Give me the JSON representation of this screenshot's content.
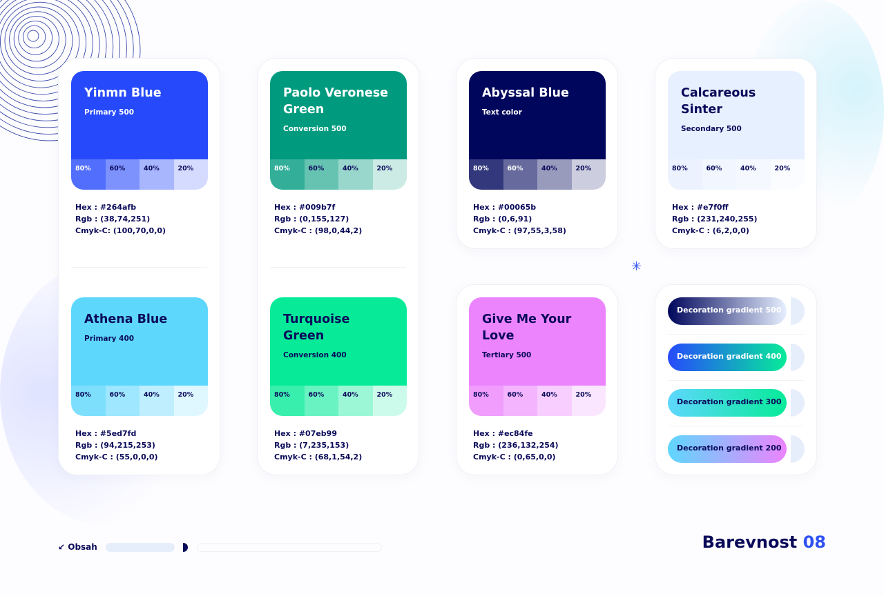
{
  "colors": {
    "navy": "#0a0a5a",
    "accent": "#2f52f0"
  },
  "swatches": [
    {
      "name": "Yinmn Blue",
      "role": "Primary 500",
      "hex": "#264afb",
      "hex_label": "Hex : #264afb",
      "rgb_label": "Rgb : (38,74,251)",
      "cmyk_label": "Cmyk-C: (100,70,0,0)"
    },
    {
      "name": "Paolo Veronese Green",
      "role": "Conversion 500",
      "hex": "#009b7f",
      "hex_label": "Hex : #009b7f",
      "rgb_label": "Rgb : (0,155,127)",
      "cmyk_label": "Cmyk-C : (98,0,44,2)"
    },
    {
      "name": "Abyssal Blue",
      "role": "Text color",
      "hex": "#00065b",
      "hex_label": "Hex : #00065b",
      "rgb_label": "Rgb : (0,6,91)",
      "cmyk_label": "Cmyk-C : (97,55,3,58)"
    },
    {
      "name": "Calcareous Sinter",
      "role": "Secondary 500",
      "hex": "#e7f0ff",
      "hex_label": "Hex : #e7f0ff",
      "rgb_label": "Rgb : (231,240,255)",
      "cmyk_label": "Cmyk-C : (6,2,0,0)"
    },
    {
      "name": "Athena Blue",
      "role": "Primary 400",
      "hex": "#5ed7fd",
      "hex_label": "Hex : #5ed7fd",
      "rgb_label": "Rgb : (94,215,253)",
      "cmyk_label": "Cmyk-C : (55,0,0,0)"
    },
    {
      "name": "Turquoise Green",
      "role": "Conversion 400",
      "hex": "#07eb99",
      "hex_label": "Hex : #07eb99",
      "rgb_label": "Rgb : (7,235,153)",
      "cmyk_label": "Cmyk-C : (68,1,54,2)"
    },
    {
      "name": "Give Me Your Love",
      "role": "Tertiary 500",
      "hex": "#ec84fe",
      "hex_label": "Hex : #ec84fe",
      "rgb_label": "Rgb : (236,132,254)",
      "cmyk_label": "Cmyk-C : (0,65,0,0)"
    }
  ],
  "tints": [
    "80%",
    "60%",
    "40%",
    "20%"
  ],
  "gradients": [
    {
      "label": "Decoration gradient 500",
      "from": "#00065b",
      "to": "#e7f0ff",
      "text": "#ffffff"
    },
    {
      "label": "Decoration gradient 400",
      "from": "#264afb",
      "to": "#07eb99",
      "text": "#ffffff"
    },
    {
      "label": "Decoration gradient 300",
      "from": "#5ed7fd",
      "to": "#07eb99",
      "text": "#0a0a5a"
    },
    {
      "label": "Decoration gradient 200",
      "from": "#5ed7fd",
      "to": "#ec84fe",
      "text": "#0a0a5a"
    }
  ],
  "footer": {
    "nav_label": "Obsah",
    "title": "Barevnost",
    "page": "08"
  }
}
